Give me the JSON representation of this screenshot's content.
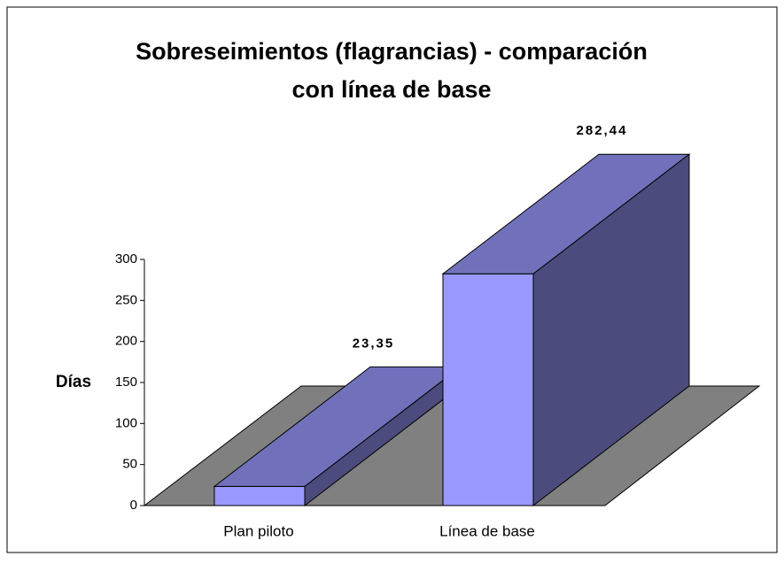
{
  "chart_data": {
    "type": "bar3d",
    "title": [
      "Sobreseimientos (flagrancias) - comparación",
      "con línea de base"
    ],
    "y_label": "Días",
    "categories": [
      "Plan piloto",
      "Línea de base"
    ],
    "values": [
      23.35,
      282.44
    ],
    "value_labels": [
      "23,35",
      "282,44"
    ],
    "color": "#9999ff",
    "ylim": [
      0,
      300
    ],
    "yticks": [
      0,
      50,
      100,
      150,
      200,
      250,
      300
    ]
  }
}
